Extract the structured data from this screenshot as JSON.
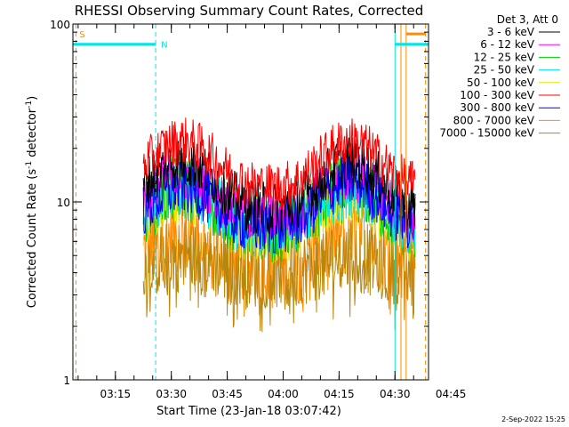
{
  "chart_data": {
    "type": "line",
    "title": "RHESSI Observing Summary Count Rates, Corrected",
    "xlabel": "Start Time (23-Jan-18 03:07:42)",
    "ylabel_main": "Corrected Count Rate (s",
    "ylabel_sup1": "-1",
    "ylabel_mid": " detector",
    "ylabel_sup2": "-1",
    "ylabel_end": ")",
    "yscale": "log",
    "ylim": [
      1,
      100
    ],
    "xlim_minutes": [
      3.6,
      99.0
    ],
    "y_ticks": [
      {
        "value": 1,
        "label": "1"
      },
      {
        "value": 10,
        "label": "10"
      },
      {
        "value": 100,
        "label": "100"
      }
    ],
    "x_ticks": [
      {
        "minute": 15,
        "label": "03:15"
      },
      {
        "minute": 30,
        "label": "03:30"
      },
      {
        "minute": 45,
        "label": "03:45"
      },
      {
        "minute": 60,
        "label": "04:00"
      },
      {
        "minute": 75,
        "label": "04:15"
      },
      {
        "minute": 90,
        "label": "04:30"
      },
      {
        "minute": 105,
        "label": "04:45"
      }
    ],
    "legend_header": "Det 3, Att 0",
    "legend_position": "top-right outside",
    "series": [
      {
        "name": "3 - 6 keV",
        "color": "#000000",
        "peak1": 17,
        "peak2": 17,
        "dip": 9,
        "jitter": 0.22
      },
      {
        "name": "6 - 12 keV",
        "color": "#ff00ff",
        "peak1": 14,
        "peak2": 14,
        "dip": 8,
        "jitter": 0.22
      },
      {
        "name": "12 - 25 keV",
        "color": "#00cc00",
        "peak1": 12,
        "peak2": 12,
        "dip": 7,
        "jitter": 0.28
      },
      {
        "name": "25 - 50 keV",
        "color": "#00e5e5",
        "peak1": 12,
        "peak2": 12,
        "dip": 7,
        "jitter": 0.25
      },
      {
        "name": "50 - 100 keV",
        "color": "#e5e500",
        "peak1": 11,
        "peak2": 11,
        "dip": 6.5,
        "jitter": 0.25
      },
      {
        "name": "100 - 300 keV",
        "color": "#ff0000",
        "peak1": 22,
        "peak2": 22,
        "dip": 12,
        "jitter": 0.2
      },
      {
        "name": "300 - 800 keV",
        "color": "#0000ff",
        "peak1": 12,
        "peak2": 13,
        "dip": 7,
        "jitter": 0.22
      },
      {
        "name": "800 - 7000 keV",
        "color": "#ff8c00",
        "peak1": 6.5,
        "peak2": 6.5,
        "dip": 4.5,
        "jitter": 0.35
      },
      {
        "name": "7000 - 15000 keV",
        "color": "#b8860b",
        "peak1": 5,
        "peak2": 5,
        "dip": 4,
        "jitter": 0.3
      }
    ],
    "data_window_minutes": [
      22.5,
      95.5
    ],
    "flags": [
      {
        "label": "S",
        "color": "#ff8c00",
        "start_minute": 3.9,
        "end_minute": 3.9,
        "y_value": 88
      },
      {
        "label": "N",
        "color": "#00e5e5",
        "start_minute": 3.6,
        "end_minute": 25.8,
        "y_value": 77
      },
      {
        "label": "",
        "color": "#00e5e5",
        "start_minute": 90.0,
        "end_minute": 99.0,
        "y_value": 77
      },
      {
        "label": "",
        "color": "#ff8c00",
        "start_minute": 93.0,
        "end_minute": 98.2,
        "y_value": 88
      }
    ],
    "vlines": [
      {
        "minute": 3.6,
        "color": "#00e5e5",
        "style": "solid"
      },
      {
        "minute": 4.4,
        "color": "#ff8c00",
        "style": "dashed"
      },
      {
        "minute": 25.8,
        "color": "#00e5e5",
        "style": "dashed"
      },
      {
        "minute": 90.0,
        "color": "#00e5e5",
        "style": "solid"
      },
      {
        "minute": 91.6,
        "color": "#ff8c00",
        "style": "solid"
      },
      {
        "minute": 93.0,
        "color": "#ff8c00",
        "style": "solid"
      },
      {
        "minute": 98.2,
        "color": "#ff8c00",
        "style": "dashed"
      }
    ],
    "footer_date": "2-Sep-2022 15:25"
  }
}
